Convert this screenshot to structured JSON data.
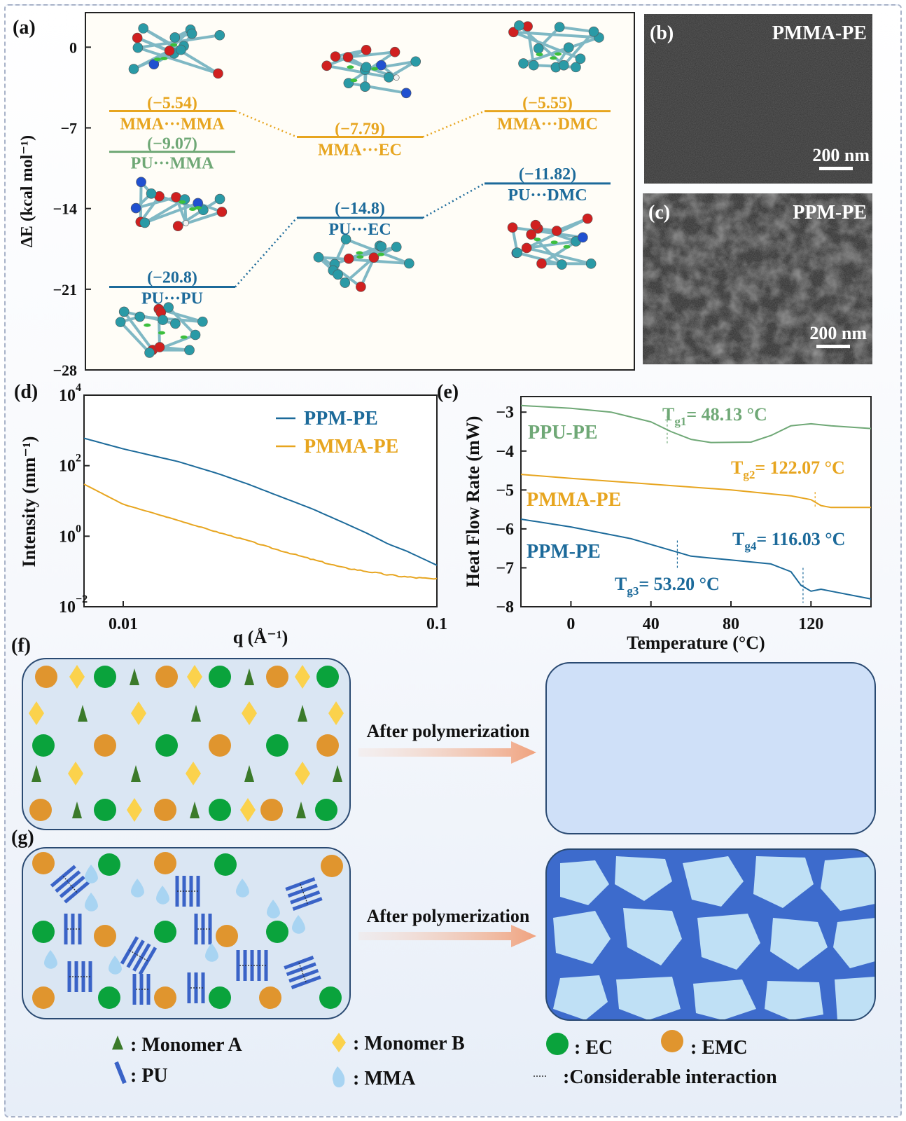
{
  "panel_labels": {
    "a": "(a)",
    "b": "(b)",
    "c": "(c)",
    "d": "(d)",
    "e": "(e)",
    "f": "(f)",
    "g": "(g)"
  },
  "chart_data": [
    {
      "id": "a",
      "type": "line",
      "ylabel": "ΔE (kcal mol⁻¹)",
      "ylim": [
        -28,
        3
      ],
      "yticks": [
        0,
        -7,
        -14,
        -21,
        -28
      ],
      "ytick_labels": [
        "0",
        "−7",
        "−14",
        "−21",
        "−28"
      ],
      "series": [
        {
          "color": "#e7a51f",
          "values": [
            -5.54,
            -7.79,
            -5.55
          ],
          "value_labels": [
            "(−5.54)",
            "(−7.79)",
            "(−5.55)"
          ],
          "pair_labels": [
            "MMA···MMA",
            "MMA···EC",
            "MMA···DMC"
          ]
        },
        {
          "color": "#6fa876",
          "values": [
            -9.07
          ],
          "value_labels": [
            "(−9.07)"
          ],
          "pair_labels": [
            "PU···MMA"
          ]
        },
        {
          "color": "#1c6a9a",
          "values": [
            -20.8,
            -14.8,
            -11.82
          ],
          "value_labels": [
            "(−20.8)",
            "(−14.8)",
            "(−11.82)"
          ],
          "pair_labels": [
            "PU···PU",
            "PU···EC",
            "PU···DMC"
          ]
        }
      ]
    },
    {
      "id": "d",
      "type": "line",
      "xlabel": "q (Å⁻¹)",
      "ylabel": "Intensity (mm⁻¹)",
      "xscale": "log",
      "yscale": "log",
      "xlim": [
        0.0075,
        0.1
      ],
      "ylim": [
        0.01,
        10000
      ],
      "xtick_labels": [
        "0.01",
        "0.1"
      ],
      "ytick_labels": [
        "10",
        "10",
        "10",
        "10"
      ],
      "ytick_exponents": [
        "−2",
        "0",
        "2",
        "4"
      ],
      "legend_position": "top-right",
      "series": [
        {
          "name": "PPM-PE",
          "color": "#1c6a9a",
          "x": [
            0.0075,
            0.01,
            0.015,
            0.02,
            0.025,
            0.03,
            0.04,
            0.05,
            0.06,
            0.07,
            0.08,
            0.1
          ],
          "y": [
            600,
            300,
            130,
            60,
            30,
            16,
            6,
            2.5,
            1.2,
            0.6,
            0.38,
            0.15
          ]
        },
        {
          "name": "PMMA-PE",
          "color": "#e7a51f",
          "x": [
            0.0075,
            0.01,
            0.015,
            0.02,
            0.025,
            0.03,
            0.04,
            0.05,
            0.06,
            0.07,
            0.08,
            0.1
          ],
          "y": [
            30,
            8,
            2.8,
            1.3,
            0.75,
            0.45,
            0.22,
            0.13,
            0.1,
            0.08,
            0.07,
            0.06
          ]
        }
      ]
    },
    {
      "id": "e",
      "type": "line",
      "xlabel": "Temperature (°C)",
      "ylabel": "Heat Flow Rate (mW)",
      "xlim": [
        -25,
        150
      ],
      "ylim": [
        -8,
        -2.6
      ],
      "xticks": [
        0,
        40,
        80,
        120
      ],
      "yticks": [
        -3,
        -4,
        -5,
        -6,
        -7,
        -8
      ],
      "ytick_labels": [
        "−3",
        "−4",
        "−5",
        "−6",
        "−7",
        "−8"
      ],
      "series": [
        {
          "name": "PPU-PE",
          "color": "#6fa876",
          "x": [
            -25,
            0,
            20,
            40,
            50,
            60,
            70,
            90,
            100,
            110,
            120,
            130,
            150
          ],
          "y": [
            -2.83,
            -2.9,
            -3.0,
            -3.25,
            -3.5,
            -3.7,
            -3.78,
            -3.77,
            -3.6,
            -3.35,
            -3.3,
            -3.35,
            -3.42
          ]
        },
        {
          "name": "PMMA-PE",
          "color": "#e7a51f",
          "x": [
            -25,
            0,
            40,
            80,
            110,
            120,
            125,
            130,
            150
          ],
          "y": [
            -4.6,
            -4.7,
            -4.85,
            -5.0,
            -5.15,
            -5.25,
            -5.4,
            -5.45,
            -5.45
          ]
        },
        {
          "name": "PPM-PE",
          "color": "#1c6a9a",
          "x": [
            -25,
            0,
            30,
            50,
            60,
            80,
            100,
            110,
            115,
            120,
            125,
            130,
            150
          ],
          "y": [
            -5.75,
            -5.95,
            -6.25,
            -6.55,
            -6.7,
            -6.8,
            -6.9,
            -7.1,
            -7.45,
            -7.6,
            -7.55,
            -7.6,
            -7.8
          ]
        }
      ],
      "annotations": [
        {
          "label": "T",
          "sub": "g1",
          "value": "= 48.13 °C",
          "color": "#6fa876",
          "x": 48.13
        },
        {
          "label": "T",
          "sub": "g2",
          "value": "= 122.07 °C",
          "color": "#e7a51f",
          "x": 122.07
        },
        {
          "label": "T",
          "sub": "g3",
          "value": "= 53.20 °C",
          "color": "#1c6a9a",
          "x": 53.2
        },
        {
          "label": "T",
          "sub": "g4",
          "value": "= 116.03 °C",
          "color": "#1c6a9a",
          "x": 116.03
        }
      ]
    }
  ],
  "tem": {
    "b": {
      "title": "PMMA-PE",
      "scale": "200 nm"
    },
    "c": {
      "title": "PPM-PE",
      "scale": "200 nm"
    }
  },
  "schematic": {
    "arrow_label_f": "After polymerization",
    "arrow_label_g": "After polymerization",
    "legend": {
      "monomer_a": ": Monomer A",
      "monomer_b": ": Monomer B",
      "ec": ": EC",
      "emc": ": EMC",
      "pu": ": PU",
      "mma": ": MMA",
      "interaction": ":Considerable interaction"
    },
    "colors": {
      "monomer_a": "#3b7a2a",
      "monomer_b": "#fbd24c",
      "ec": "#0aa33c",
      "emc": "#e0952e",
      "pu": "#3a63c7",
      "mma": "#a8d4f2",
      "panel_bg": "#dae6f3",
      "phase_dark": "#3d6bcc",
      "phase_light": "#bfe0f5"
    }
  }
}
